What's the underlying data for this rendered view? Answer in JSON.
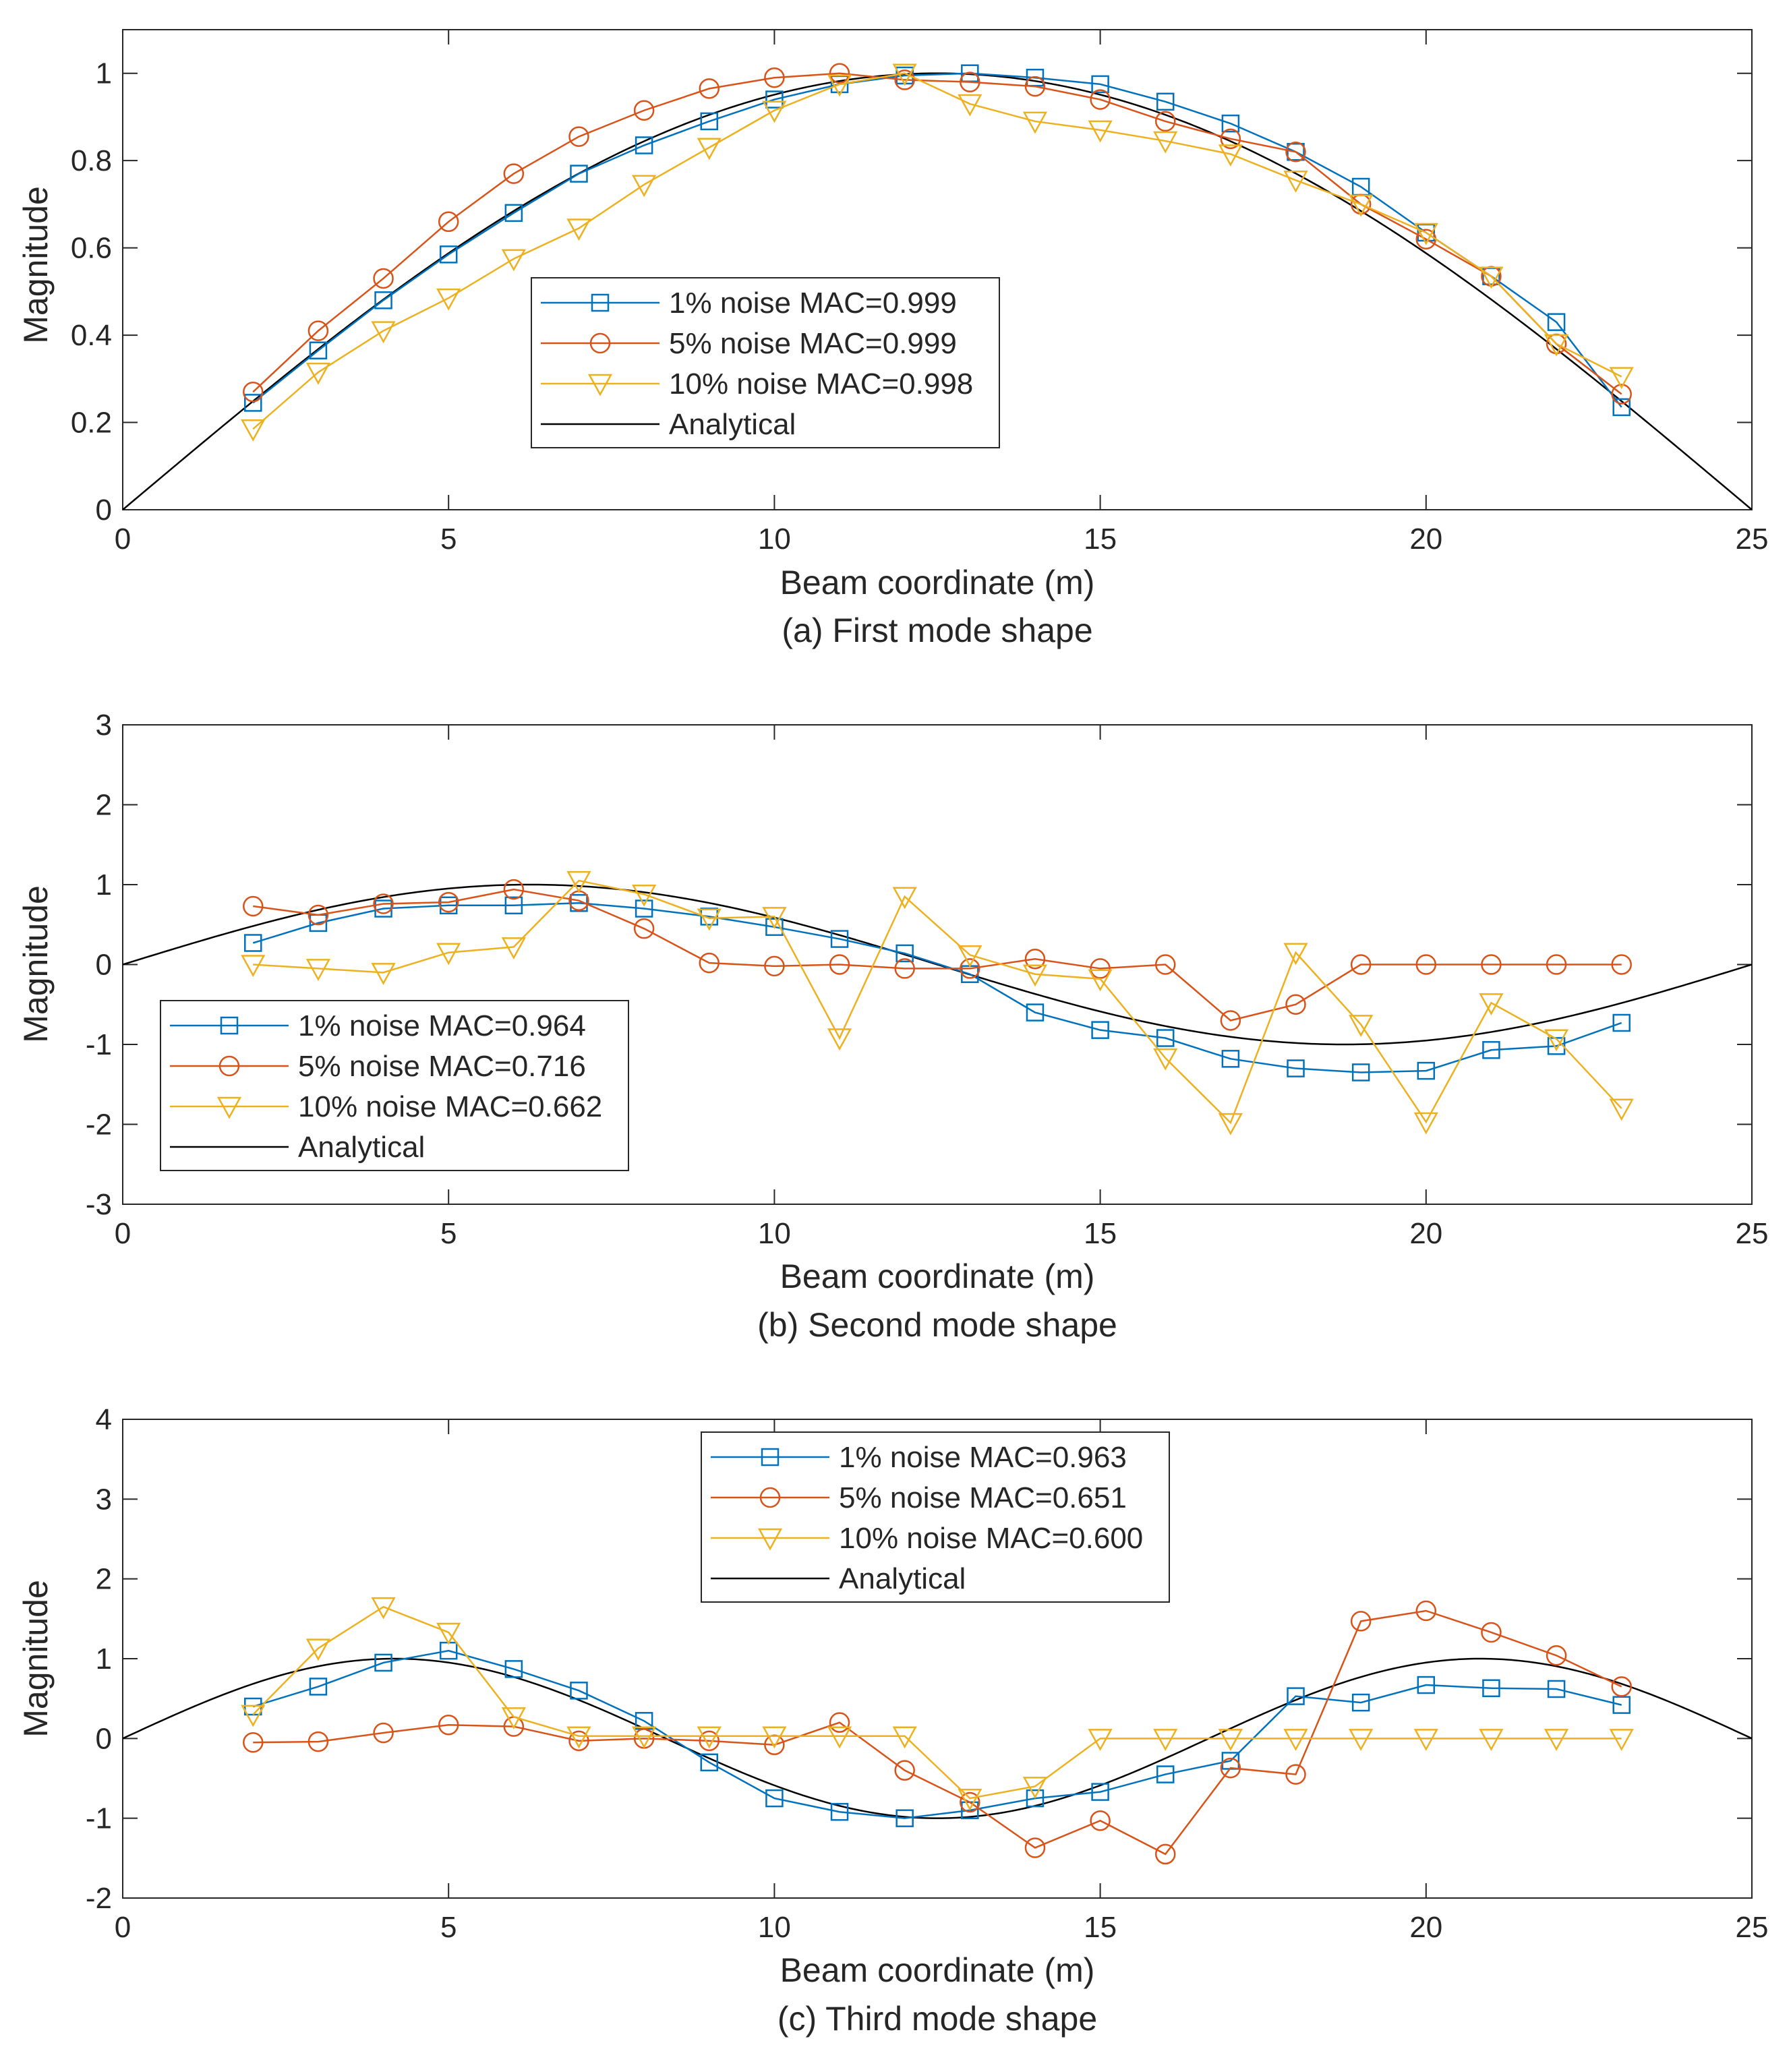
{
  "figure": {
    "colors": {
      "series1": "#0072BD",
      "series2": "#D95319",
      "series3": "#EDB120",
      "analytical": "#000000"
    }
  },
  "chart_data": [
    {
      "type": "line",
      "caption": "(a) First mode shape",
      "xlabel": "Beam coordinate (m)",
      "ylabel": "Magnitude",
      "xlim": [
        0,
        25
      ],
      "ylim": [
        0,
        1.1
      ],
      "xticks": [
        0,
        5,
        10,
        15,
        20,
        25
      ],
      "yticks": [
        0,
        0.2,
        0.4,
        0.6,
        0.8,
        1
      ],
      "ytick_labels": [
        "0",
        "0.2",
        "0.4",
        "0.6",
        "0.8",
        "1"
      ],
      "legend_position": "center",
      "x": [
        2,
        3,
        4,
        5,
        6,
        7,
        8,
        9,
        10,
        11,
        12,
        13,
        14,
        15,
        16,
        17,
        18,
        19,
        20,
        21,
        22,
        23
      ],
      "series": [
        {
          "name": "1% noise MAC=0.999",
          "marker": "square",
          "color": "#0072BD",
          "values": [
            0.245,
            0.365,
            0.48,
            0.585,
            0.68,
            0.77,
            0.835,
            0.89,
            0.94,
            0.975,
            0.995,
            1.0,
            0.99,
            0.975,
            0.935,
            0.885,
            0.82,
            0.74,
            0.635,
            0.535,
            0.43,
            0.235
          ]
        },
        {
          "name": "5% noise MAC=0.999",
          "marker": "circle",
          "color": "#D95319",
          "values": [
            0.27,
            0.41,
            0.53,
            0.66,
            0.77,
            0.855,
            0.915,
            0.965,
            0.99,
            1.0,
            0.985,
            0.98,
            0.97,
            0.94,
            0.89,
            0.85,
            0.82,
            0.7,
            0.62,
            0.535,
            0.38,
            0.265
          ]
        },
        {
          "name": "10% noise MAC=0.998",
          "marker": "triangle-down",
          "color": "#EDB120",
          "values": [
            0.185,
            0.315,
            0.41,
            0.485,
            0.575,
            0.645,
            0.745,
            0.83,
            0.915,
            0.975,
            1.0,
            0.93,
            0.89,
            0.87,
            0.845,
            0.815,
            0.755,
            0.7,
            0.635,
            0.535,
            0.38,
            0.305
          ]
        },
        {
          "name": "Analytical",
          "color": "#000000",
          "function": "sin(pi*x/25)"
        }
      ]
    },
    {
      "type": "line",
      "caption": "(b) Second mode shape",
      "xlabel": "Beam coordinate (m)",
      "ylabel": "Magnitude",
      "xlim": [
        0,
        25
      ],
      "ylim": [
        -3,
        3
      ],
      "xticks": [
        0,
        5,
        10,
        15,
        20,
        25
      ],
      "yticks": [
        -3,
        -2,
        -1,
        0,
        1,
        2,
        3
      ],
      "ytick_labels": [
        "-3",
        "-2",
        "-1",
        "0",
        "1",
        "2",
        "3"
      ],
      "legend_position": "bottom-left",
      "x": [
        2,
        3,
        4,
        5,
        6,
        7,
        8,
        9,
        10,
        11,
        12,
        13,
        14,
        15,
        16,
        17,
        18,
        19,
        20,
        21,
        22,
        23
      ],
      "series": [
        {
          "name": "1% noise MAC=0.964",
          "marker": "square",
          "color": "#0072BD",
          "values": [
            0.27,
            0.52,
            0.7,
            0.74,
            0.74,
            0.77,
            0.7,
            0.6,
            0.47,
            0.32,
            0.14,
            -0.12,
            -0.6,
            -0.82,
            -0.92,
            -1.18,
            -1.3,
            -1.35,
            -1.33,
            -1.07,
            -1.02,
            -0.73
          ]
        },
        {
          "name": "5% noise MAC=0.716",
          "marker": "circle",
          "color": "#D95319",
          "values": [
            0.73,
            0.62,
            0.76,
            0.78,
            0.94,
            0.8,
            0.45,
            0.02,
            -0.02,
            0.0,
            -0.05,
            -0.05,
            0.07,
            -0.05,
            0.0,
            -0.7,
            -0.5,
            0.0,
            0.0,
            0.0,
            0.0,
            0.0
          ]
        },
        {
          "name": "10% noise MAC=0.662",
          "marker": "triangle-down",
          "color": "#EDB120",
          "values": [
            0.0,
            -0.05,
            -0.1,
            0.15,
            0.22,
            1.05,
            0.88,
            0.58,
            0.6,
            -0.92,
            0.85,
            0.12,
            -0.12,
            -0.18,
            -1.17,
            -1.98,
            0.15,
            -0.75,
            -1.97,
            -0.48,
            -0.93,
            -1.8
          ]
        },
        {
          "name": "Analytical",
          "color": "#000000",
          "function": "sin(2*pi*x/25)"
        }
      ]
    },
    {
      "type": "line",
      "caption": "(c) Third mode shape",
      "xlabel": "Beam coordinate (m)",
      "ylabel": "Magnitude",
      "xlim": [
        0,
        25
      ],
      "ylim": [
        -2,
        4
      ],
      "xticks": [
        0,
        5,
        10,
        15,
        20,
        25
      ],
      "yticks": [
        -2,
        -1,
        0,
        1,
        2,
        3,
        4
      ],
      "ytick_labels": [
        "-2",
        "-1",
        "0",
        "1",
        "2",
        "3",
        "4"
      ],
      "legend_position": "top-center",
      "x": [
        2,
        3,
        4,
        5,
        6,
        7,
        8,
        9,
        10,
        11,
        12,
        13,
        14,
        15,
        16,
        17,
        18,
        19,
        20,
        21,
        22,
        23
      ],
      "series": [
        {
          "name": "1% noise MAC=0.963",
          "marker": "square",
          "color": "#0072BD",
          "values": [
            0.4,
            0.65,
            0.95,
            1.1,
            0.87,
            0.6,
            0.22,
            -0.3,
            -0.75,
            -0.92,
            -1.0,
            -0.9,
            -0.75,
            -0.67,
            -0.45,
            -0.28,
            0.53,
            0.45,
            0.67,
            0.63,
            0.62,
            0.42
          ]
        },
        {
          "name": "5% noise MAC=0.651",
          "marker": "circle",
          "color": "#D95319",
          "values": [
            -0.05,
            -0.04,
            0.07,
            0.17,
            0.15,
            -0.03,
            0.0,
            -0.03,
            -0.08,
            0.2,
            -0.4,
            -0.8,
            -1.37,
            -1.03,
            -1.45,
            -0.37,
            -0.45,
            1.47,
            1.6,
            1.33,
            1.04,
            0.65
          ]
        },
        {
          "name": "10% noise MAC=0.600",
          "marker": "triangle-down",
          "color": "#EDB120",
          "values": [
            0.3,
            1.13,
            1.65,
            1.33,
            0.27,
            0.03,
            0.03,
            0.03,
            0.03,
            0.03,
            0.03,
            -0.75,
            -0.6,
            0.0,
            0.0,
            0.0,
            0.0,
            0.0,
            0.0,
            0.0,
            0.0,
            0.0
          ]
        },
        {
          "name": "Analytical",
          "color": "#000000",
          "function": "sin(3*pi*x/25)"
        }
      ]
    }
  ]
}
